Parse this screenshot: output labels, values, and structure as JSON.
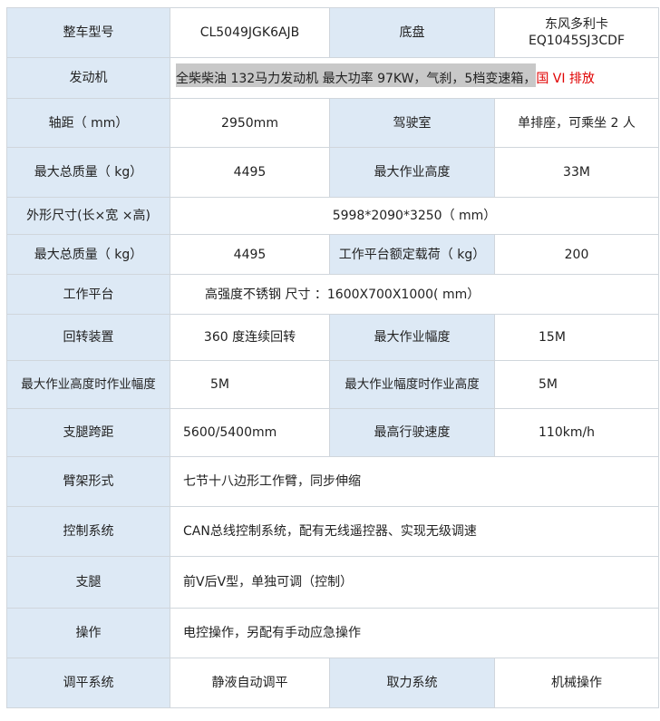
{
  "rows": {
    "model": {
      "label": "整车型号",
      "value": "CL5049JGK6AJB",
      "label2": "底盘",
      "value2a": "东风多利卡",
      "value2b": "EQ1045SJ3CDF"
    },
    "engine": {
      "label": "发动机",
      "value": "全柴柴油  132马力发动机 最大功率 97KW，气刹，5档变速箱，",
      "emission": "国 VI 排放"
    },
    "wheelbase": {
      "label": "轴距（ mm）",
      "value": "2950mm",
      "label2": "驾驶室",
      "value2": "单排座，可乘坐 2 人"
    },
    "mass1": {
      "label": "最大总质量（ kg）",
      "value": "4495",
      "label2": "最大作业高度",
      "value2": "33M"
    },
    "dims": {
      "label": "外形尺寸(长×宽 ×高)",
      "value": "5998*2090*3250（ mm）"
    },
    "mass2": {
      "label": "最大总质量（ kg）",
      "value": "4495",
      "label2": "工作平台额定载荷（ kg）",
      "value2": "200"
    },
    "platform": {
      "label": "工作平台",
      "value": "高强度不锈钢 尺寸 ：1600X700X1000( mm）"
    },
    "slew": {
      "label": "回转装置",
      "value": "360 度连续回转",
      "label2": "最大作业幅度",
      "value2": "15M"
    },
    "reach": {
      "label": "最大作业高度时作业幅度",
      "value": "5M",
      "label2": "最大作业幅度时作业高度",
      "value2": "5M"
    },
    "outrigger_span": {
      "label": "支腿跨距",
      "value": "5600/5400mm",
      "label2": "最高行驶速度",
      "value2": "110km/h"
    },
    "boom": {
      "label": "臂架形式",
      "value": "七节十八边形工作臂，同步伸缩"
    },
    "control": {
      "label": "控制系统",
      "value": "CAN总线控制系统，配有无线遥控器、实现无级调速"
    },
    "outrigger": {
      "label": "支腿",
      "value": "前V后V型，单独可调（控制）"
    },
    "operation": {
      "label": "操作",
      "value": "电控操作，另配有手动应急操作"
    },
    "leveling": {
      "label": "调平系统",
      "value": "静液自动调平",
      "label2": "取力系统",
      "value2": "机械操作"
    }
  },
  "colors": {
    "header_bg": "#dde9f5",
    "border": "#d0d6dc",
    "emission": "#e00000",
    "highlight": "#c8c8c8"
  }
}
